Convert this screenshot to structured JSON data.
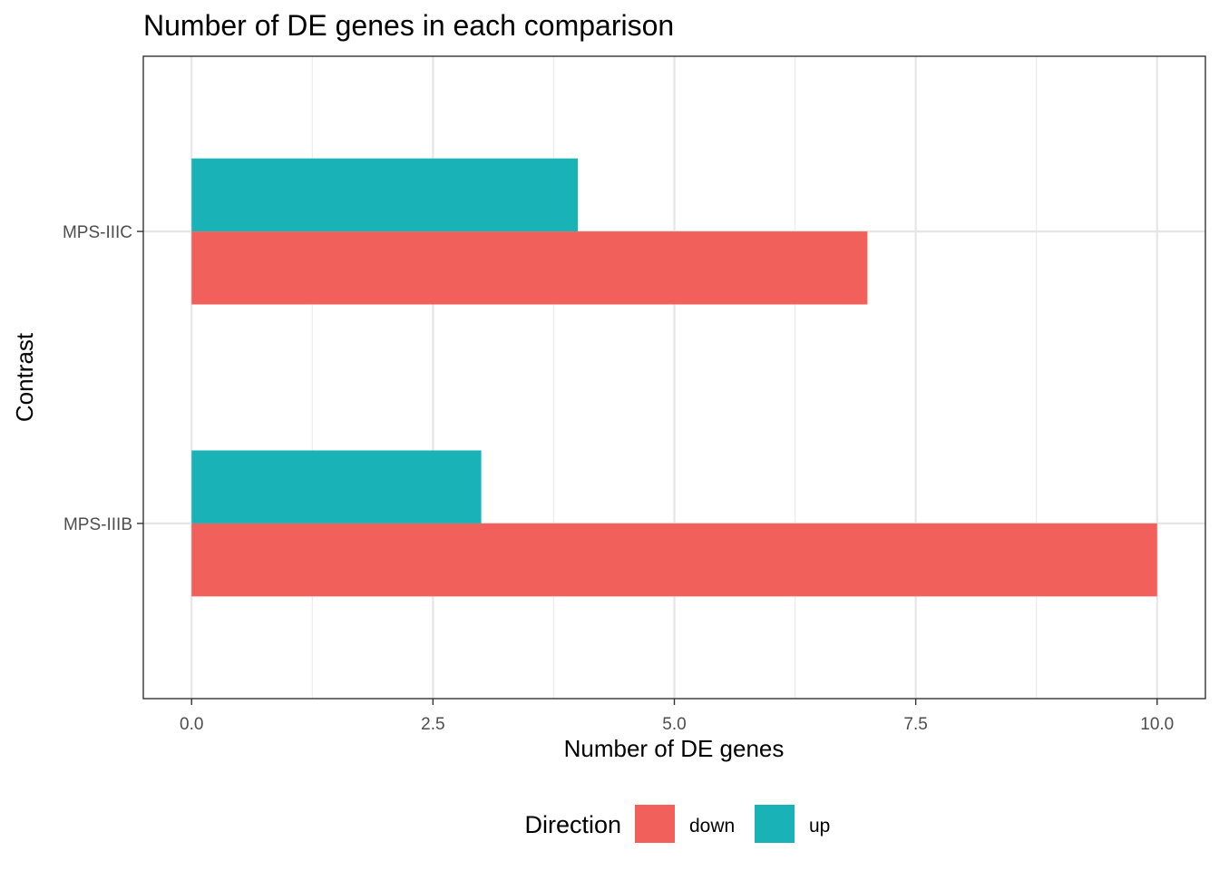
{
  "chart_data": {
    "type": "bar",
    "orientation": "horizontal",
    "stacked": false,
    "title": "Number of DE genes in each comparison",
    "xlabel": "Number of DE genes",
    "ylabel": "Contrast",
    "categories": [
      "MPS-IIIB",
      "MPS-IIIC"
    ],
    "series": [
      {
        "name": "down",
        "color": "#F2605B",
        "values": [
          10,
          7
        ]
      },
      {
        "name": "up",
        "color": "#19B3B7",
        "values": [
          3,
          4
        ]
      }
    ],
    "xlim": [
      -0.5,
      10.5
    ],
    "xticks": [
      0,
      2.5,
      5,
      7.5,
      10
    ],
    "xtick_labels": [
      "0.0",
      "2.5",
      "5.0",
      "7.5",
      "10.0"
    ],
    "grid": true,
    "legend": {
      "title": "Direction",
      "position": "bottom",
      "entries": [
        "down",
        "up"
      ]
    }
  }
}
